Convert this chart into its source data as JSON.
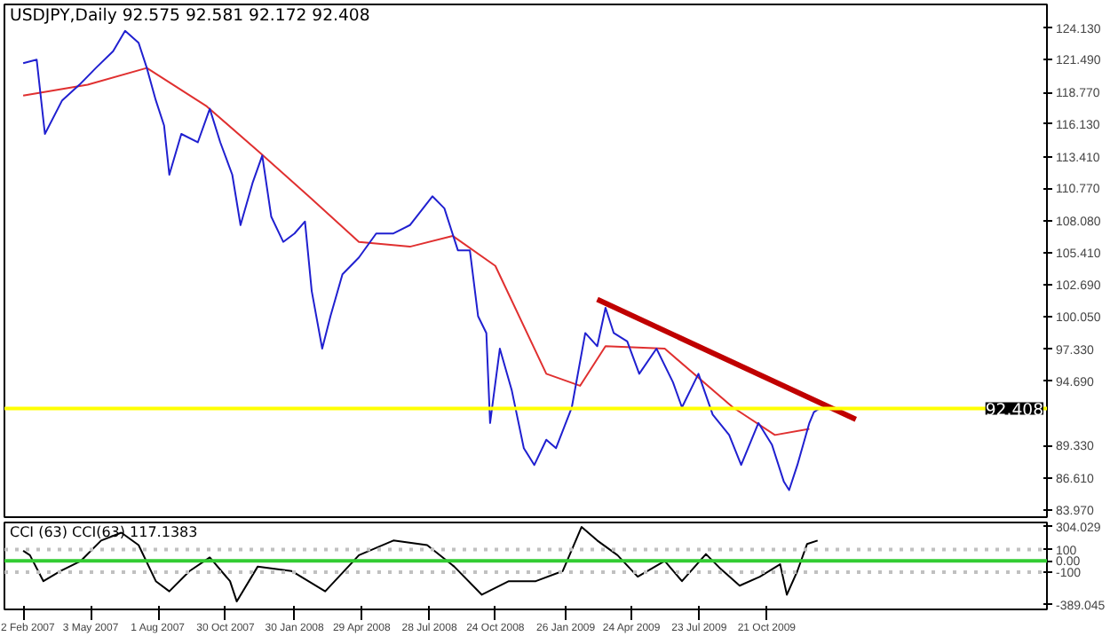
{
  "chart_data": [
    {
      "type": "line",
      "title": "USDJPY,Daily  92.575 92.581 92.172 92.408",
      "tick_labels": "y",
      "grid": false,
      "xlim": [
        "2007-01-08",
        "2010-10-30"
      ],
      "ylim": [
        83.2,
        126.1
      ],
      "yticks": [
        {
          "value": 124.13,
          "label": "124.130"
        },
        {
          "value": 121.49,
          "label": "121.490"
        },
        {
          "value": 118.77,
          "label": "118.770"
        },
        {
          "value": 116.13,
          "label": "116.130"
        },
        {
          "value": 113.41,
          "label": "113.410"
        },
        {
          "value": 110.77,
          "label": "110.770"
        },
        {
          "value": 108.08,
          "label": "108.080"
        },
        {
          "value": 105.41,
          "label": "105.410"
        },
        {
          "value": 102.69,
          "label": "102.690"
        },
        {
          "value": 100.05,
          "label": "100.050"
        },
        {
          "value": 97.33,
          "label": "97.330"
        },
        {
          "value": 94.69,
          "label": "94.690"
        },
        {
          "value": 89.33,
          "label": "89.330"
        },
        {
          "value": 86.61,
          "label": "86.610"
        },
        {
          "value": 83.97,
          "label": "83.970"
        }
      ],
      "ref_lines": [
        {
          "axis": "y",
          "value": 92.408,
          "label": "92.408",
          "color": "#ffff00"
        }
      ],
      "series": [
        {
          "color": "#e03030",
          "x": [
            "2007-02-02",
            "2007-04-29",
            "2007-07-17",
            "2007-10-05",
            "2007-12-12",
            "2008-02-18",
            "2008-04-25",
            "2008-07-02",
            "2008-08-28",
            "2008-10-24",
            "2008-12-31",
            "2009-02-14",
            "2009-03-20",
            "2009-06-07",
            "2009-09-06",
            "2009-11-01",
            "2009-12-17"
          ],
          "values": [
            118.5,
            119.4,
            120.8,
            117.6,
            113.9,
            110.1,
            106.3,
            105.9,
            106.8,
            104.3,
            95.3,
            94.3,
            97.6,
            97.4,
            92.5,
            90.2,
            90.7
          ]
        },
        {
          "color": "#2020d0",
          "x": [
            "2007-02-02",
            "2007-02-20",
            "2007-03-03",
            "2007-03-26",
            "2007-04-18",
            "2007-05-10",
            "2007-06-02",
            "2007-06-18",
            "2007-07-06",
            "2007-07-17",
            "2007-07-29",
            "2007-08-09",
            "2007-08-16",
            "2007-09-01",
            "2007-09-23",
            "2007-10-09",
            "2007-10-23",
            "2007-11-08",
            "2007-11-19",
            "2007-12-05",
            "2007-12-18",
            "2007-12-30",
            "2008-01-15",
            "2008-01-30",
            "2008-02-13",
            "2008-02-22",
            "2008-03-07",
            "2008-03-18",
            "2008-04-03",
            "2008-04-25",
            "2008-05-18",
            "2008-06-10",
            "2008-07-02",
            "2008-08-01",
            "2008-08-17",
            "2008-09-04",
            "2008-09-20",
            "2008-10-01",
            "2008-10-12",
            "2008-10-17",
            "2008-10-30",
            "2008-11-15",
            "2008-12-01",
            "2008-12-15",
            "2008-12-31",
            "2009-01-13",
            "2009-02-03",
            "2009-02-21",
            "2009-03-09",
            "2009-03-20",
            "2009-03-31",
            "2009-04-18",
            "2009-05-04",
            "2009-05-27",
            "2009-06-18",
            "2009-06-30",
            "2009-07-22",
            "2009-08-10",
            "2009-09-01",
            "2009-09-17",
            "2009-10-10",
            "2009-10-28",
            "2009-11-13",
            "2009-11-20",
            "2009-12-01",
            "2009-12-17",
            "2009-12-23",
            "2009-12-30"
          ],
          "values": [
            121.2,
            121.5,
            115.3,
            118.1,
            119.4,
            120.8,
            122.2,
            123.9,
            122.9,
            120.8,
            118.1,
            116.0,
            111.9,
            115.3,
            114.6,
            117.4,
            114.6,
            111.9,
            107.7,
            111.2,
            113.5,
            108.4,
            106.3,
            107.0,
            108.0,
            102.2,
            97.4,
            100.1,
            103.6,
            105.0,
            107.0,
            107.0,
            107.7,
            110.1,
            109.1,
            105.6,
            105.6,
            100.1,
            98.7,
            91.2,
            97.4,
            93.9,
            89.1,
            87.7,
            89.8,
            89.1,
            92.5,
            98.7,
            97.6,
            100.8,
            98.7,
            98.0,
            95.3,
            97.4,
            94.6,
            92.5,
            95.3,
            91.9,
            90.2,
            87.7,
            91.2,
            89.4,
            86.3,
            85.6,
            87.7,
            91.2,
            92.1,
            92.4
          ]
        },
        {
          "color": "#c00000",
          "x": [
            "2009-03-09",
            "2010-02-17"
          ],
          "values": [
            101.5,
            91.5
          ]
        }
      ]
    },
    {
      "type": "line",
      "title": "CCI (63)  CCI(63) 117.1383",
      "grid": false,
      "xlim": [
        "2007-01-08",
        "2010-10-30"
      ],
      "xticks": [
        {
          "value": "2007-02-02",
          "label": "2 Feb 2007"
        },
        {
          "value": "2007-05-03",
          "label": "3 May 2007"
        },
        {
          "value": "2007-08-01",
          "label": "1 Aug 2007"
        },
        {
          "value": "2007-10-30",
          "label": "30 Oct 2007"
        },
        {
          "value": "2008-01-30",
          "label": "30 Jan 2008"
        },
        {
          "value": "2008-04-29",
          "label": "29 Apr 2008"
        },
        {
          "value": "2008-07-28",
          "label": "28 Jul 2008"
        },
        {
          "value": "2008-10-24",
          "label": "24 Oct 2008"
        },
        {
          "value": "2009-01-26",
          "label": "26 Jan 2009"
        },
        {
          "value": "2009-04-24",
          "label": "24 Apr 2009"
        },
        {
          "value": "2009-07-23",
          "label": "23 Jul 2009"
        },
        {
          "value": "2009-10-21",
          "label": "21 Oct 2009"
        }
      ],
      "ylim": [
        -430,
        340
      ],
      "yticks": [
        {
          "value": 304.029,
          "label": "304.029"
        },
        100,
        {
          "value": 0,
          "label": "0.00"
        },
        -100,
        {
          "value": -389.045,
          "label": "-389.045"
        }
      ],
      "ref_lines": [
        {
          "axis": "y",
          "value": 100,
          "color": "#c0c0c0",
          "line_style": "dotted"
        },
        {
          "axis": "y",
          "value": 0,
          "color": "#33cc33"
        },
        {
          "axis": "y",
          "value": -100,
          "color": "#c0c0c0",
          "line_style": "dotted"
        }
      ],
      "series": [
        {
          "color": "#000000",
          "x": [
            "2007-02-02",
            "2007-02-11",
            "2007-03-01",
            "2007-03-24",
            "2007-04-20",
            "2007-05-17",
            "2007-06-13",
            "2007-07-06",
            "2007-07-29",
            "2007-08-16",
            "2007-09-12",
            "2007-10-09",
            "2007-11-05",
            "2007-11-14",
            "2007-12-12",
            "2008-01-26",
            "2008-03-11",
            "2008-04-25",
            "2008-06-10",
            "2008-07-25",
            "2008-08-30",
            "2008-10-06",
            "2008-11-11",
            "2008-12-17",
            "2009-01-22",
            "2009-02-16",
            "2009-03-09",
            "2009-04-05",
            "2009-05-02",
            "2009-06-07",
            "2009-06-30",
            "2009-08-01",
            "2009-08-19",
            "2009-09-15",
            "2009-10-12",
            "2009-11-08",
            "2009-11-17",
            "2009-12-01",
            "2009-12-14",
            "2009-12-28"
          ],
          "values": [
            90,
            50,
            -180,
            -90,
            0,
            180,
            250,
            140,
            -180,
            -270,
            -90,
            30,
            -180,
            -360,
            -50,
            -90,
            -270,
            50,
            180,
            140,
            -50,
            -300,
            -180,
            -180,
            -90,
            300,
            180,
            50,
            -140,
            0,
            -180,
            60,
            -60,
            -220,
            -140,
            -30,
            -300,
            -90,
            150,
            180
          ]
        }
      ]
    }
  ]
}
